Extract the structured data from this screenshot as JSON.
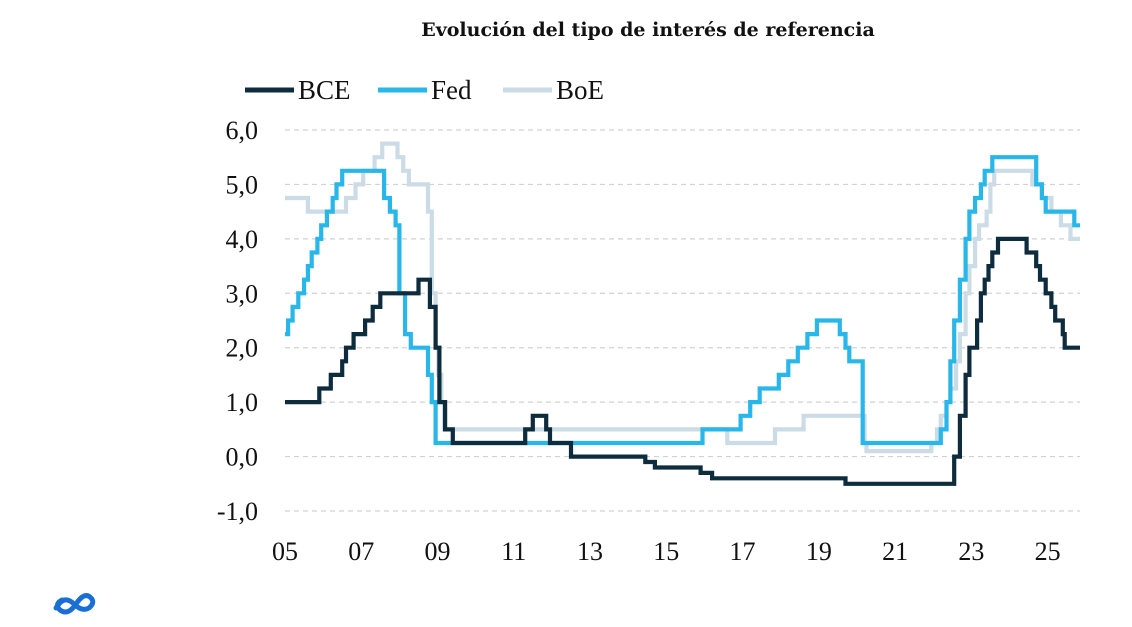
{
  "chart_data": {
    "type": "line",
    "title": "Evolución del tipo de interés de referencia",
    "xlabel": "",
    "ylabel": "",
    "x_ticks": [
      "05",
      "07",
      "09",
      "11",
      "13",
      "15",
      "17",
      "19",
      "21",
      "23",
      "25"
    ],
    "y_ticks": [
      "6,0",
      "5,0",
      "4,0",
      "3,0",
      "2,0",
      "1,0",
      "0,0",
      "-1,0"
    ],
    "xlim": [
      2005.0,
      2025.85
    ],
    "ylim": [
      -1.0,
      6.0
    ],
    "grid": true,
    "legend": "top-left",
    "series": [
      {
        "name": "BCE",
        "color": "#0d2c3d",
        "steps": [
          [
            2005.0,
            1.0
          ],
          [
            2005.9,
            1.25
          ],
          [
            2006.2,
            1.5
          ],
          [
            2006.5,
            1.75
          ],
          [
            2006.6,
            2.0
          ],
          [
            2006.8,
            2.25
          ],
          [
            2007.1,
            2.5
          ],
          [
            2007.3,
            2.75
          ],
          [
            2007.5,
            3.0
          ],
          [
            2008.5,
            3.25
          ],
          [
            2008.8,
            2.75
          ],
          [
            2008.95,
            2.0
          ],
          [
            2009.05,
            1.0
          ],
          [
            2009.2,
            0.5
          ],
          [
            2009.4,
            0.25
          ],
          [
            2011.3,
            0.5
          ],
          [
            2011.5,
            0.75
          ],
          [
            2011.85,
            0.5
          ],
          [
            2011.95,
            0.25
          ],
          [
            2012.5,
            0.0
          ],
          [
            2014.45,
            -0.1
          ],
          [
            2014.7,
            -0.2
          ],
          [
            2015.9,
            -0.3
          ],
          [
            2016.2,
            -0.4
          ],
          [
            2019.7,
            -0.5
          ],
          [
            2022.55,
            0.0
          ],
          [
            2022.7,
            0.75
          ],
          [
            2022.85,
            1.5
          ],
          [
            2022.95,
            2.0
          ],
          [
            2023.15,
            2.5
          ],
          [
            2023.25,
            3.0
          ],
          [
            2023.35,
            3.25
          ],
          [
            2023.45,
            3.5
          ],
          [
            2023.55,
            3.75
          ],
          [
            2023.7,
            4.0
          ],
          [
            2024.45,
            3.75
          ],
          [
            2024.7,
            3.5
          ],
          [
            2024.8,
            3.25
          ],
          [
            2024.95,
            3.0
          ],
          [
            2025.1,
            2.75
          ],
          [
            2025.2,
            2.5
          ],
          [
            2025.4,
            2.25
          ],
          [
            2025.45,
            2.0
          ],
          [
            2025.85,
            2.0
          ]
        ]
      },
      {
        "name": "Fed",
        "color": "#29b6e8",
        "steps": [
          [
            2005.0,
            2.25
          ],
          [
            2005.08,
            2.5
          ],
          [
            2005.2,
            2.75
          ],
          [
            2005.35,
            3.0
          ],
          [
            2005.5,
            3.25
          ],
          [
            2005.6,
            3.5
          ],
          [
            2005.7,
            3.75
          ],
          [
            2005.85,
            4.0
          ],
          [
            2005.95,
            4.25
          ],
          [
            2006.1,
            4.5
          ],
          [
            2006.25,
            4.75
          ],
          [
            2006.35,
            5.0
          ],
          [
            2006.5,
            5.25
          ],
          [
            2007.6,
            4.75
          ],
          [
            2007.75,
            4.5
          ],
          [
            2007.9,
            4.25
          ],
          [
            2008.0,
            3.0
          ],
          [
            2008.15,
            2.25
          ],
          [
            2008.3,
            2.0
          ],
          [
            2008.75,
            1.5
          ],
          [
            2008.85,
            1.0
          ],
          [
            2008.95,
            0.25
          ],
          [
            2015.95,
            0.5
          ],
          [
            2016.95,
            0.75
          ],
          [
            2017.2,
            1.0
          ],
          [
            2017.45,
            1.25
          ],
          [
            2017.95,
            1.5
          ],
          [
            2018.2,
            1.75
          ],
          [
            2018.45,
            2.0
          ],
          [
            2018.7,
            2.25
          ],
          [
            2018.95,
            2.5
          ],
          [
            2019.55,
            2.25
          ],
          [
            2019.7,
            2.0
          ],
          [
            2019.8,
            1.75
          ],
          [
            2020.15,
            0.25
          ],
          [
            2022.2,
            0.5
          ],
          [
            2022.35,
            1.0
          ],
          [
            2022.45,
            1.75
          ],
          [
            2022.55,
            2.5
          ],
          [
            2022.7,
            3.25
          ],
          [
            2022.85,
            4.0
          ],
          [
            2022.95,
            4.5
          ],
          [
            2023.1,
            4.75
          ],
          [
            2023.25,
            5.0
          ],
          [
            2023.35,
            5.25
          ],
          [
            2023.55,
            5.5
          ],
          [
            2024.7,
            5.0
          ],
          [
            2024.85,
            4.75
          ],
          [
            2024.95,
            4.5
          ],
          [
            2025.7,
            4.25
          ],
          [
            2025.85,
            4.25
          ]
        ]
      },
      {
        "name": "BoE",
        "color": "#ccdce6",
        "steps": [
          [
            2005.0,
            4.75
          ],
          [
            2005.6,
            4.5
          ],
          [
            2006.6,
            4.75
          ],
          [
            2006.85,
            5.0
          ],
          [
            2007.05,
            5.25
          ],
          [
            2007.35,
            5.5
          ],
          [
            2007.55,
            5.75
          ],
          [
            2007.95,
            5.5
          ],
          [
            2008.1,
            5.25
          ],
          [
            2008.25,
            5.0
          ],
          [
            2008.75,
            4.5
          ],
          [
            2008.85,
            3.0
          ],
          [
            2008.95,
            2.0
          ],
          [
            2009.02,
            1.5
          ],
          [
            2009.1,
            1.0
          ],
          [
            2009.17,
            0.5
          ],
          [
            2016.6,
            0.25
          ],
          [
            2017.85,
            0.5
          ],
          [
            2018.6,
            0.75
          ],
          [
            2020.2,
            0.25
          ],
          [
            2020.25,
            0.1
          ],
          [
            2021.95,
            0.25
          ],
          [
            2022.1,
            0.5
          ],
          [
            2022.2,
            0.75
          ],
          [
            2022.35,
            1.0
          ],
          [
            2022.45,
            1.25
          ],
          [
            2022.6,
            1.75
          ],
          [
            2022.7,
            2.25
          ],
          [
            2022.85,
            3.0
          ],
          [
            2022.95,
            3.5
          ],
          [
            2023.1,
            4.0
          ],
          [
            2023.2,
            4.25
          ],
          [
            2023.4,
            4.5
          ],
          [
            2023.5,
            5.0
          ],
          [
            2023.6,
            5.25
          ],
          [
            2024.6,
            5.0
          ],
          [
            2024.85,
            4.75
          ],
          [
            2025.1,
            4.5
          ],
          [
            2025.35,
            4.25
          ],
          [
            2025.6,
            4.0
          ],
          [
            2025.85,
            4.0
          ]
        ]
      }
    ]
  },
  "logo": {
    "name": "brand-logo",
    "color": "#1a6fd6"
  }
}
